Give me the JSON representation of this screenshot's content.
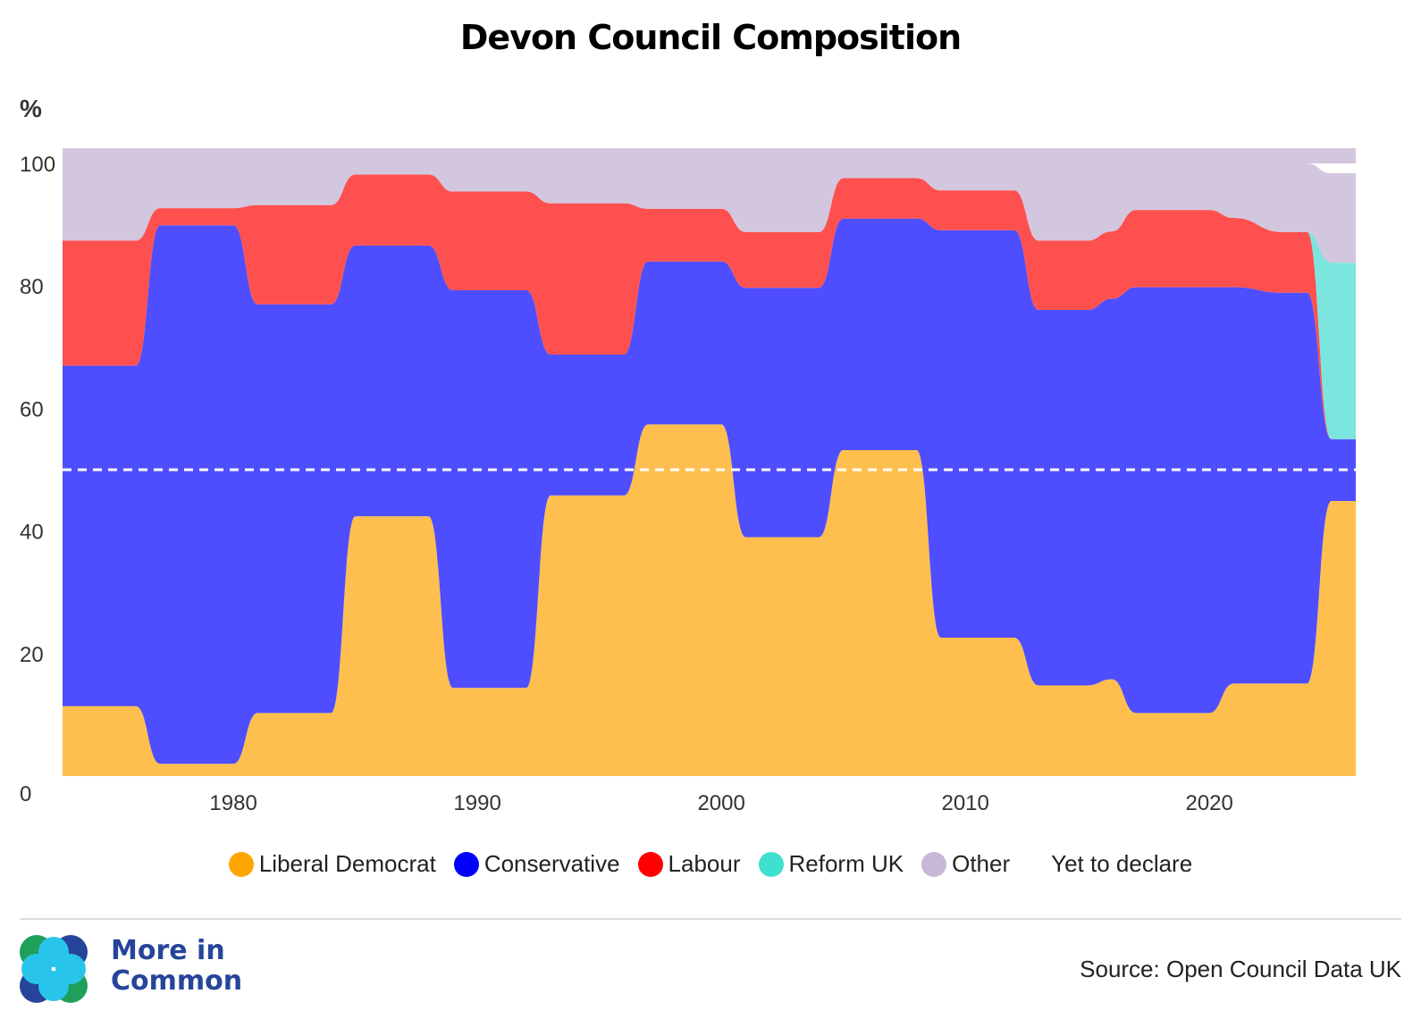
{
  "title": "Devon Council Composition",
  "y_unit": "%",
  "legend": [
    {
      "label": "Liberal Democrat",
      "color": "#ffa500"
    },
    {
      "label": "Conservative",
      "color": "#0000ff"
    },
    {
      "label": "Labour",
      "color": "#ff0000"
    },
    {
      "label": "Reform UK",
      "color": "#40e0d0"
    },
    {
      "label": "Other",
      "color": "#c8b8d8"
    },
    {
      "label": "Yet to declare",
      "color": "none"
    }
  ],
  "brand": {
    "line1": "More in",
    "line2": "Common"
  },
  "source": "Source: Open Council Data UK",
  "chart_data": {
    "type": "area",
    "stacked": true,
    "x": [
      1973,
      1976,
      1977,
      1980,
      1981,
      1984,
      1985,
      1988,
      1989,
      1992,
      1993,
      1996,
      1997,
      2000,
      2001,
      2004,
      2005,
      2008,
      2009,
      2012,
      2013,
      2015,
      2016,
      2017,
      2020,
      2021,
      2023,
      2024,
      2025,
      2026
    ],
    "series": [
      {
        "name": "Liberal Democrat",
        "color": "#ffbf4f",
        "values": [
          11.4,
          11.4,
          2.0,
          2.0,
          10.3,
          10.3,
          42.4,
          42.4,
          14.4,
          14.4,
          45.8,
          45.8,
          57.4,
          57.4,
          39.0,
          39.0,
          53.2,
          53.2,
          22.6,
          22.6,
          14.8,
          14.8,
          15.8,
          10.3,
          10.3,
          15.1,
          15.1,
          15.1,
          44.9,
          44.9
        ]
      },
      {
        "name": "Conservative",
        "color": "#4e4efe",
        "values": [
          55.6,
          55.6,
          87.9,
          87.9,
          66.7,
          66.7,
          44.2,
          44.2,
          64.9,
          64.9,
          23.0,
          23.0,
          26.6,
          26.6,
          40.7,
          40.7,
          37.8,
          37.8,
          66.5,
          66.5,
          61.3,
          61.3,
          62.1,
          69.5,
          69.5,
          64.7,
          63.8,
          63.8,
          10.1,
          10.1
        ]
      },
      {
        "name": "Labour",
        "color": "#ff5050",
        "values": [
          20.4,
          20.4,
          2.8,
          2.8,
          16.2,
          16.2,
          11.6,
          11.6,
          16.1,
          16.1,
          24.7,
          24.7,
          8.6,
          8.6,
          9.1,
          9.1,
          6.6,
          6.6,
          6.5,
          6.5,
          11.3,
          11.3,
          11.0,
          12.6,
          12.6,
          11.3,
          9.9,
          9.9,
          0.0,
          0.0
        ]
      },
      {
        "name": "Reform UK",
        "color": "#7be6de",
        "values": [
          0,
          0,
          0,
          0,
          0,
          0,
          0,
          0,
          0,
          0,
          0,
          0,
          0,
          0,
          0,
          0,
          0,
          0,
          0,
          0,
          0,
          0,
          0,
          0,
          0,
          0,
          0,
          0,
          28.8,
          28.8
        ]
      },
      {
        "name": "Other",
        "color": "#d3c7e0",
        "values": [
          12.6,
          12.6,
          7.3,
          7.3,
          6.8,
          6.8,
          1.8,
          1.8,
          4.6,
          4.6,
          6.5,
          6.5,
          7.4,
          7.4,
          11.2,
          11.2,
          2.4,
          2.4,
          4.4,
          4.4,
          12.6,
          12.6,
          11.1,
          7.6,
          7.6,
          8.9,
          11.2,
          11.2,
          14.6,
          14.6
        ]
      },
      {
        "name": "Yet to declare",
        "color": "#ffffff",
        "values": [
          0,
          0,
          0,
          0,
          0,
          0,
          0,
          0,
          0,
          0,
          0,
          0,
          0,
          0,
          0,
          0,
          0,
          0,
          0,
          0,
          0,
          0,
          0,
          0,
          0,
          0,
          0,
          0,
          1.6,
          1.6
        ]
      }
    ],
    "x_ticks": [
      1980,
      1990,
      2000,
      2010,
      2020
    ],
    "y_ticks": [
      0,
      20,
      40,
      60,
      80,
      100
    ],
    "xlim": [
      1973,
      2026
    ],
    "ylim": [
      0,
      100
    ],
    "majority_line": 50,
    "grid": false,
    "legend_position": "bottom"
  }
}
